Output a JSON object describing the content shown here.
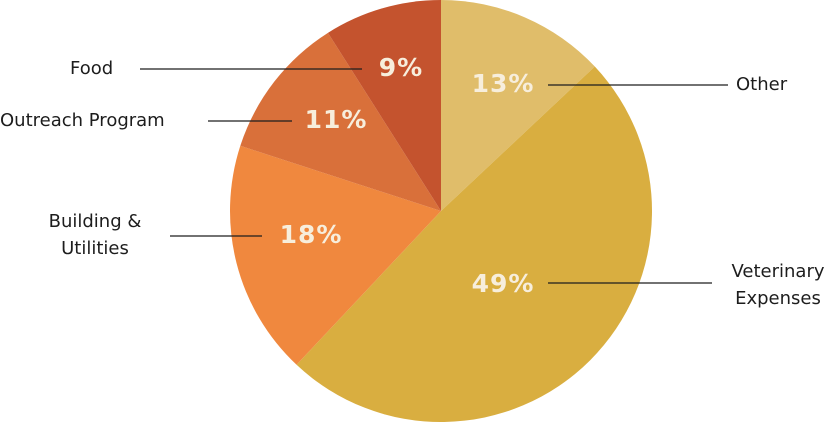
{
  "chart_data": {
    "type": "pie",
    "labels": [
      "Other",
      "Veterinary Expenses",
      "Building & Utilities",
      "Outreach Program",
      "Food"
    ],
    "values": [
      13,
      49,
      18,
      11,
      9
    ],
    "value_labels": [
      "13%",
      "49%",
      "18%",
      "11%",
      "9%"
    ],
    "colors": [
      "#e0bd6a",
      "#d9ae40",
      "#f0883e",
      "#d9703a",
      "#c4532e"
    ]
  }
}
